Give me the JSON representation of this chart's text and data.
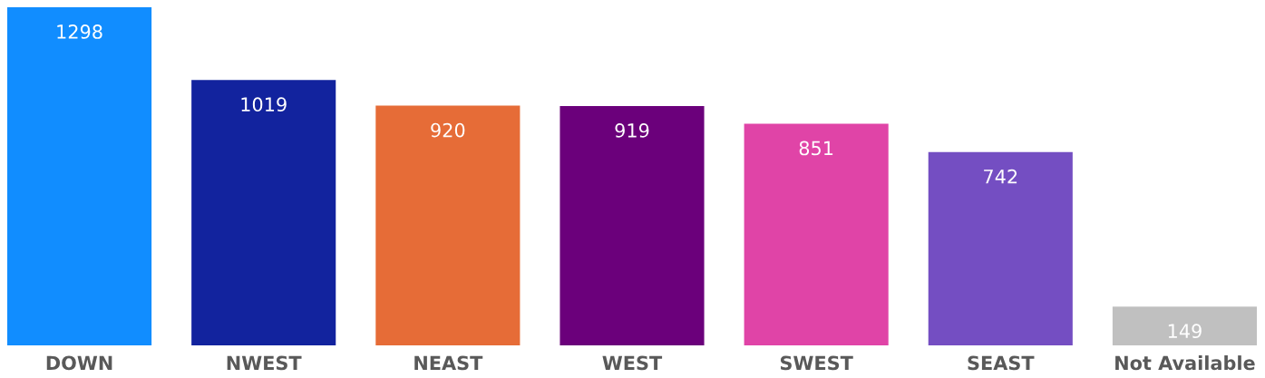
{
  "chart_data": {
    "type": "bar",
    "categories": [
      "DOWN",
      "NWEST",
      "NEAST",
      "WEST",
      "SWEST",
      "SEAST",
      "Not Available"
    ],
    "values": [
      1298,
      1019,
      920,
      919,
      851,
      742,
      149
    ],
    "colors": [
      "#118dff",
      "#12239e",
      "#e66c37",
      "#6b007b",
      "#e044a7",
      "#744ec2",
      "#c0c0c0"
    ],
    "data_labels": true,
    "grid": false,
    "legend": false
  }
}
